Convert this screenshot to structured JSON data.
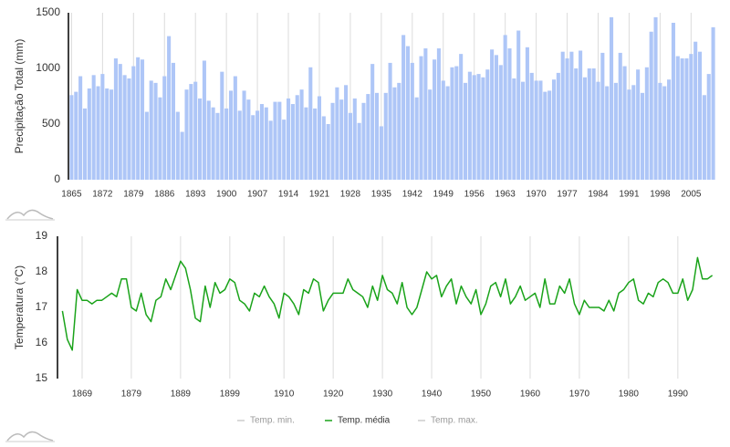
{
  "chart_data": [
    {
      "type": "bar",
      "ylabel": "Precipitação Total (mm)",
      "color": "#aec6f7",
      "x": [
        1865,
        1866,
        1867,
        1868,
        1869,
        1870,
        1871,
        1872,
        1873,
        1874,
        1875,
        1876,
        1877,
        1878,
        1879,
        1880,
        1881,
        1882,
        1883,
        1884,
        1885,
        1886,
        1887,
        1888,
        1889,
        1890,
        1891,
        1892,
        1893,
        1894,
        1895,
        1896,
        1897,
        1898,
        1899,
        1900,
        1901,
        1902,
        1903,
        1904,
        1905,
        1906,
        1907,
        1908,
        1909,
        1910,
        1911,
        1912,
        1913,
        1914,
        1915,
        1916,
        1917,
        1918,
        1919,
        1920,
        1921,
        1922,
        1923,
        1924,
        1925,
        1926,
        1927,
        1928,
        1929,
        1930,
        1931,
        1932,
        1933,
        1934,
        1935,
        1936,
        1937,
        1938,
        1939,
        1940,
        1941,
        1942,
        1943,
        1944,
        1945,
        1946,
        1947,
        1948,
        1949,
        1950,
        1951,
        1952,
        1953,
        1954,
        1955,
        1956,
        1957,
        1958,
        1959,
        1960,
        1961,
        1962,
        1963,
        1964,
        1965,
        1966,
        1967,
        1968,
        1969,
        1970,
        1971,
        1972,
        1973,
        1974,
        1975,
        1976,
        1977,
        1978,
        1979,
        1980,
        1981,
        1982,
        1983,
        1984,
        1985,
        1986,
        1987,
        1988,
        1989,
        1990,
        1991,
        1992,
        1993,
        1994,
        1995,
        1996,
        1997,
        1998,
        1999,
        2000,
        2001,
        2002,
        2003,
        2004,
        2005,
        2006,
        2007,
        2008,
        2009,
        2010
      ],
      "values": [
        760,
        790,
        930,
        640,
        820,
        940,
        840,
        950,
        820,
        810,
        1090,
        1040,
        940,
        910,
        1020,
        1100,
        1080,
        610,
        890,
        870,
        740,
        930,
        1290,
        1050,
        610,
        430,
        810,
        860,
        880,
        730,
        1070,
        710,
        650,
        600,
        970,
        640,
        800,
        930,
        620,
        800,
        720,
        580,
        620,
        680,
        650,
        530,
        700,
        700,
        540,
        730,
        680,
        760,
        810,
        650,
        1010,
        640,
        750,
        570,
        500,
        690,
        830,
        720,
        850,
        600,
        730,
        510,
        690,
        770,
        1040,
        780,
        480,
        780,
        1050,
        830,
        870,
        1300,
        1200,
        1050,
        740,
        1110,
        1180,
        810,
        1080,
        1180,
        890,
        840,
        1010,
        1020,
        1130,
        870,
        970,
        940,
        950,
        920,
        990,
        1170,
        1120,
        1030,
        1300,
        1180,
        910,
        1340,
        880,
        1190,
        960,
        890,
        890,
        790,
        800,
        900,
        960,
        1150,
        1090,
        1150,
        1000,
        1160,
        920,
        1000,
        1000,
        880,
        1140,
        840,
        1460,
        870,
        1140,
        1020,
        810,
        850,
        990,
        780,
        1010,
        1330,
        1460,
        870,
        840,
        900,
        1410,
        1110,
        1090,
        1090,
        1130,
        1240,
        1150,
        760,
        950,
        1370
      ],
      "xlim": [
        1864.5,
        2010.5
      ],
      "xticks": [
        1865,
        1872,
        1879,
        1886,
        1893,
        1900,
        1907,
        1914,
        1921,
        1928,
        1935,
        1942,
        1949,
        1956,
        1963,
        1970,
        1977,
        1984,
        1991,
        1998,
        2005
      ],
      "ylim": [
        0,
        1500
      ],
      "yticks": [
        0,
        500,
        1000,
        1500
      ],
      "grid": true
    },
    {
      "type": "line",
      "ylabel": "Temperatura (°C)",
      "x": [
        1865,
        1866,
        1867,
        1868,
        1869,
        1870,
        1871,
        1872,
        1873,
        1874,
        1875,
        1876,
        1877,
        1878,
        1879,
        1880,
        1881,
        1882,
        1883,
        1884,
        1885,
        1886,
        1887,
        1888,
        1889,
        1890,
        1891,
        1892,
        1893,
        1894,
        1895,
        1896,
        1897,
        1898,
        1899,
        1900,
        1901,
        1902,
        1903,
        1904,
        1905,
        1906,
        1907,
        1908,
        1909,
        1910,
        1911,
        1912,
        1913,
        1914,
        1915,
        1916,
        1917,
        1918,
        1919,
        1920,
        1921,
        1922,
        1923,
        1924,
        1925,
        1926,
        1927,
        1928,
        1929,
        1930,
        1931,
        1932,
        1933,
        1934,
        1935,
        1936,
        1937,
        1938,
        1939,
        1940,
        1941,
        1942,
        1943,
        1944,
        1945,
        1946,
        1947,
        1948,
        1949,
        1950,
        1951,
        1952,
        1953,
        1954,
        1955,
        1956,
        1957,
        1958,
        1959,
        1960,
        1961,
        1962,
        1963,
        1964,
        1965,
        1966,
        1967,
        1968,
        1969,
        1970,
        1971,
        1972,
        1973,
        1974,
        1975,
        1976,
        1977,
        1978,
        1979,
        1980,
        1981,
        1982,
        1983,
        1984,
        1985,
        1986,
        1987,
        1988,
        1989,
        1990,
        1991,
        1992,
        1993,
        1994,
        1995,
        1996,
        1997
      ],
      "series": [
        {
          "name": "Temp. min.",
          "color": "#cccccc",
          "visible": false
        },
        {
          "name": "Temp. média",
          "color": "#1aa31a",
          "visible": true,
          "values": [
            16.9,
            16.1,
            15.8,
            17.5,
            17.2,
            17.2,
            17.1,
            17.2,
            17.2,
            17.3,
            17.4,
            17.3,
            17.8,
            17.8,
            17.0,
            16.9,
            17.4,
            16.8,
            16.6,
            17.2,
            17.3,
            17.8,
            17.5,
            17.9,
            18.3,
            18.1,
            17.5,
            16.7,
            16.6,
            17.6,
            17.0,
            17.7,
            17.4,
            17.5,
            17.8,
            17.7,
            17.2,
            17.1,
            16.9,
            17.4,
            17.3,
            17.6,
            17.3,
            17.1,
            16.7,
            17.4,
            17.3,
            17.1,
            16.8,
            17.5,
            17.4,
            17.8,
            17.7,
            16.9,
            17.2,
            17.4,
            17.4,
            17.4,
            17.8,
            17.5,
            17.4,
            17.3,
            17.0,
            17.6,
            17.2,
            17.9,
            17.5,
            17.4,
            17.1,
            17.7,
            17.0,
            16.8,
            17.0,
            17.5,
            18.0,
            17.8,
            17.9,
            17.3,
            17.6,
            17.8,
            17.1,
            17.6,
            17.3,
            17.1,
            17.5,
            16.8,
            17.1,
            17.6,
            17.7,
            17.3,
            17.8,
            17.1,
            17.3,
            17.6,
            17.2,
            17.3,
            17.4,
            17.0,
            17.8,
            17.1,
            17.1,
            17.6,
            17.4,
            17.8,
            17.1,
            16.8,
            17.2,
            17.0,
            17.0,
            17.0,
            16.9,
            17.2,
            16.9,
            17.4,
            17.5,
            17.7,
            17.8,
            17.2,
            17.1,
            17.4,
            17.3,
            17.7,
            17.8,
            17.7,
            17.4,
            17.4,
            17.8,
            17.2,
            17.5,
            18.4,
            17.8,
            17.8,
            17.9
          ]
        },
        {
          "name": "Temp. max.",
          "color": "#cccccc",
          "visible": false
        }
      ],
      "xlim": [
        1864,
        1998
      ],
      "xticks": [
        1869,
        1879,
        1889,
        1899,
        1910,
        1920,
        1930,
        1940,
        1950,
        1960,
        1970,
        1980,
        1990
      ],
      "ylim": [
        15,
        19
      ],
      "yticks": [
        15,
        16,
        17,
        18,
        19
      ],
      "grid": true
    }
  ]
}
